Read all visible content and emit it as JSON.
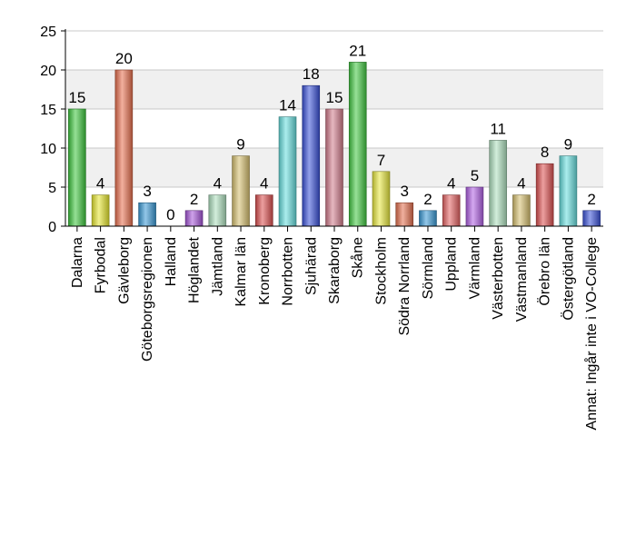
{
  "chart_data": {
    "type": "bar",
    "categories": [
      "Dalarna",
      "Fyrbodal",
      "Gävleborg",
      "Göteborgsregionen",
      "Halland",
      "Höglandet",
      "Jämtland",
      "Kalmar län",
      "Kronoberg",
      "Norrbotten",
      "Sjuhärad",
      "Skaraborg",
      "Skåne",
      "Stockholm",
      "Södra Norrland",
      "Sörmland",
      "Uppland",
      "Värmland",
      "Västerbotten",
      "Västmanland",
      "Örebro län",
      "Östergötland",
      "Annat: Ingår inte i VO-College"
    ],
    "values": [
      15,
      4,
      20,
      3,
      0,
      2,
      4,
      9,
      4,
      14,
      18,
      15,
      21,
      7,
      3,
      2,
      4,
      5,
      11,
      4,
      8,
      9,
      2
    ],
    "colors": [
      "#3ec63e",
      "#e6e62e",
      "#e8704e",
      "#3a9ad6",
      "#b0b0b0",
      "#a555d8",
      "#aee0be",
      "#d6c070",
      "#dc5050",
      "#66dede",
      "#3a52d8",
      "#d27c8c",
      "#42c842",
      "#e8e83e",
      "#e4704e",
      "#3a9ad6",
      "#e46262",
      "#b060e4",
      "#aee0be",
      "#d6c070",
      "#dc5050",
      "#66dede",
      "#3a52d8"
    ],
    "title": "",
    "xlabel": "",
    "ylabel": "",
    "ylim": [
      0,
      25
    ],
    "yticks": [
      0,
      5,
      10,
      15,
      20,
      25
    ],
    "grid": true,
    "data_labels": true
  }
}
